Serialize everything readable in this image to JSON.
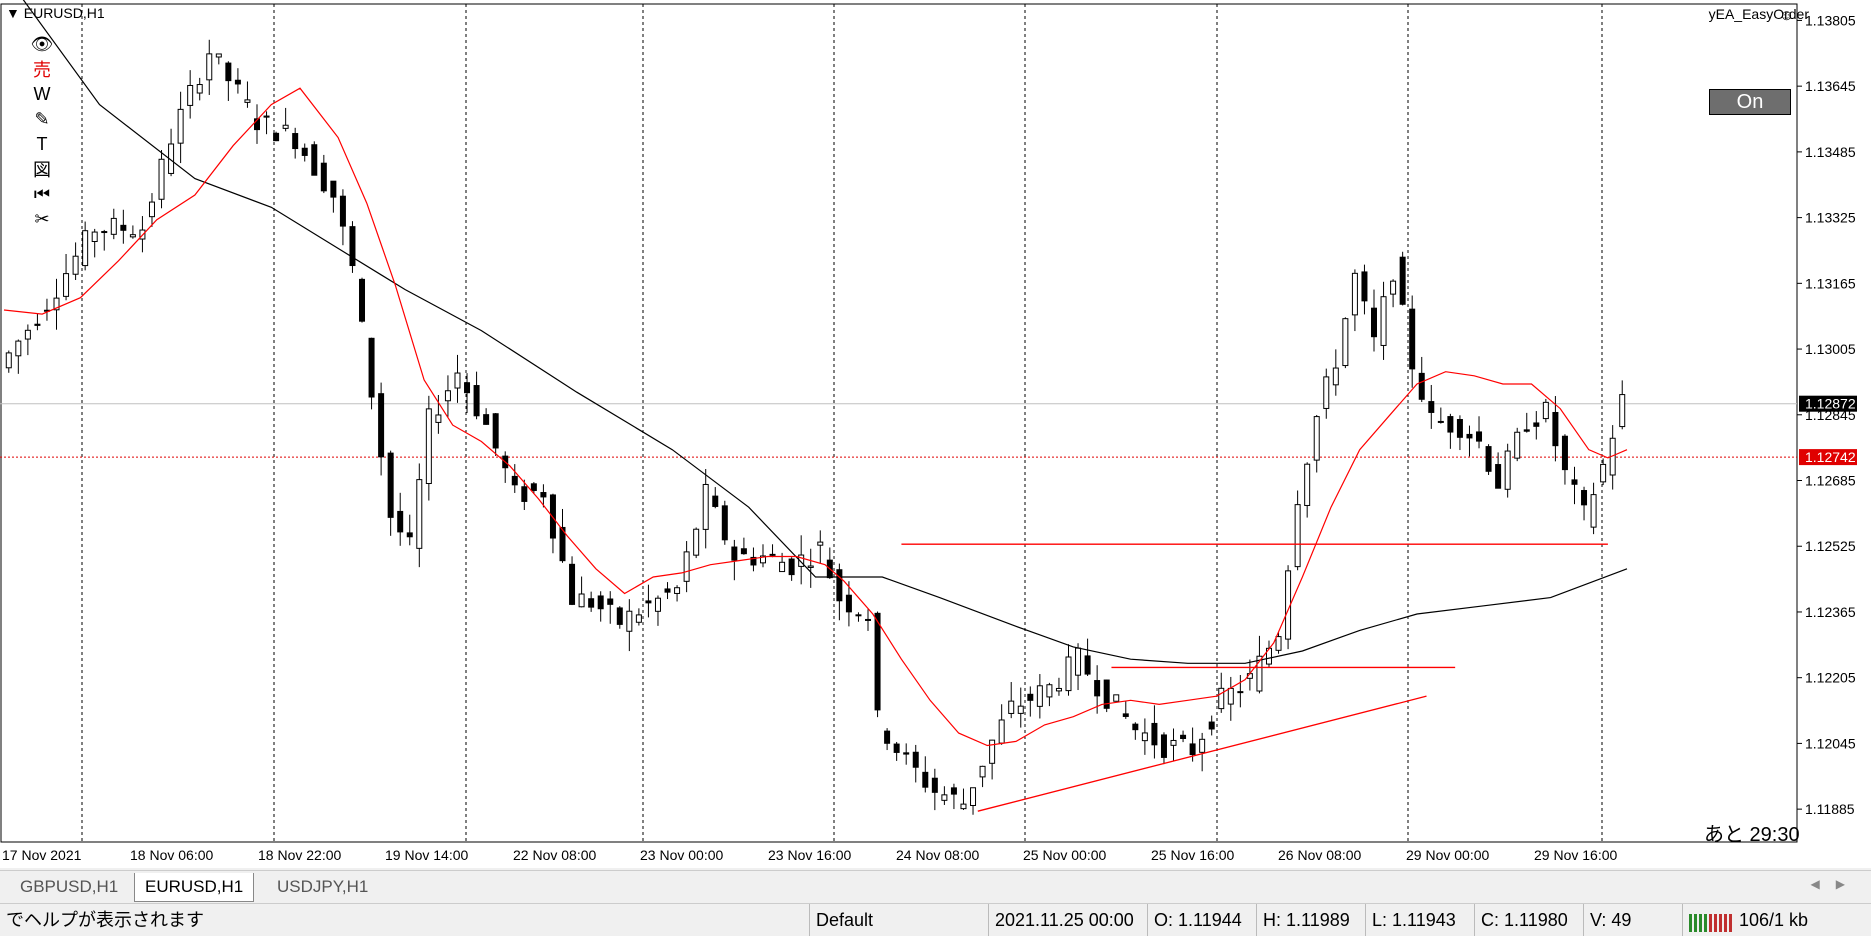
{
  "window": {
    "chart_title": "EURUSD,H1",
    "ea_name": "yEA_EasyOrder",
    "ea_button": "On",
    "countdown": "あと 29:30"
  },
  "toolbar": {
    "tools": [
      {
        "name": "eye-icon",
        "glyph": "👁",
        "color": "#000000"
      },
      {
        "name": "sell-icon",
        "glyph": "売",
        "color": "#e00000"
      },
      {
        "name": "w-icon",
        "glyph": "W",
        "color": "#000000"
      },
      {
        "name": "pen-icon",
        "glyph": "✎",
        "color": "#000000"
      },
      {
        "name": "text-icon",
        "glyph": "T",
        "color": "#000000"
      },
      {
        "name": "figure-icon",
        "glyph": "図",
        "color": "#000000"
      },
      {
        "name": "rewind-icon",
        "glyph": "⏮",
        "color": "#000000"
      },
      {
        "name": "scissors-icon",
        "glyph": "✂",
        "color": "#000000"
      }
    ]
  },
  "tabs": [
    {
      "label": "GBPUSD,H1",
      "active": false
    },
    {
      "label": "EURUSD,H1",
      "active": true
    },
    {
      "label": "USDJPY,H1",
      "active": false
    }
  ],
  "status": {
    "help": "でヘルプが表示されます",
    "profile": "Default",
    "datetime": "2021.11.25 00:00",
    "open": "O: 1.11944",
    "high": "H: 1.11989",
    "low": "L: 1.11943",
    "close": "C: 1.11980",
    "volume": "V: 49",
    "traffic": "106/1 kb"
  },
  "colors": {
    "bid_line": "#c0c0c0",
    "ask_line": "#e00000",
    "ma_fast": "#ff0000",
    "ma_slow": "#000000",
    "trendline": "#ff0000",
    "price_tag_current_bg": "#000000",
    "price_tag_ask_bg": "#e00000"
  },
  "chart_data": {
    "type": "line",
    "subtype": "candlestick",
    "symbol": "EURUSD",
    "timeframe": "H1",
    "y_ticks": [
      "1.13805",
      "1.13645",
      "1.13485",
      "1.13325",
      "1.13165",
      "1.13005",
      "1.12845",
      "1.12685",
      "1.12525",
      "1.12365",
      "1.12205",
      "1.12045",
      "1.11885"
    ],
    "ylim": [
      1.11805,
      1.13845
    ],
    "x_ticks": [
      "17 Nov 2021",
      "18 Nov 06:00",
      "18 Nov 22:00",
      "19 Nov 14:00",
      "22 Nov 08:00",
      "23 Nov 00:00",
      "23 Nov 16:00",
      "24 Nov 08:00",
      "25 Nov 00:00",
      "25 Nov 16:00",
      "26 Nov 08:00",
      "29 Nov 00:00",
      "29 Nov 16:00"
    ],
    "current_price": "1.12872",
    "ask_price": "1.12742",
    "close_path": [
      [
        0,
        1.1296
      ],
      [
        5,
        1.1312
      ],
      [
        10,
        1.133
      ],
      [
        15,
        1.133
      ],
      [
        18,
        1.1352
      ],
      [
        22,
        1.1373
      ],
      [
        27,
        1.1356
      ],
      [
        31,
        1.1352
      ],
      [
        35,
        1.1338
      ],
      [
        37,
        1.132
      ],
      [
        39,
        1.129
      ],
      [
        41,
        1.126
      ],
      [
        43,
        1.1252
      ],
      [
        45,
        1.1283
      ],
      [
        48,
        1.1295
      ],
      [
        51,
        1.1282
      ],
      [
        54,
        1.1265
      ],
      [
        57,
        1.1266
      ],
      [
        60,
        1.124
      ],
      [
        62,
        1.1239
      ],
      [
        65,
        1.1234
      ],
      [
        68,
        1.1238
      ],
      [
        71,
        1.1242
      ],
      [
        74,
        1.1265
      ],
      [
        77,
        1.125
      ],
      [
        80,
        1.125
      ],
      [
        83,
        1.1248
      ],
      [
        86,
        1.1252
      ],
      [
        88,
        1.124
      ],
      [
        91,
        1.1236
      ],
      [
        92,
        1.121
      ],
      [
        95,
        1.12
      ],
      [
        98,
        1.1193
      ],
      [
        101,
        1.119
      ],
      [
        104,
        1.1205
      ],
      [
        106,
        1.1213
      ],
      [
        110,
        1.1218
      ],
      [
        113,
        1.1225
      ],
      [
        116,
        1.1216
      ],
      [
        119,
        1.1208
      ],
      [
        122,
        1.1204
      ],
      [
        125,
        1.1203
      ],
      [
        128,
        1.1215
      ],
      [
        131,
        1.122
      ],
      [
        134,
        1.1232
      ],
      [
        136,
        1.1265
      ],
      [
        138,
        1.1284
      ],
      [
        140,
        1.1298
      ],
      [
        142,
        1.1318
      ],
      [
        144,
        1.1302
      ],
      [
        146,
        1.132
      ],
      [
        148,
        1.1297
      ],
      [
        150,
        1.1283
      ],
      [
        153,
        1.1282
      ],
      [
        155,
        1.1278
      ],
      [
        157,
        1.1268
      ],
      [
        160,
        1.1283
      ],
      [
        162,
        1.1285
      ],
      [
        164,
        1.127
      ],
      [
        166,
        1.126
      ],
      [
        168,
        1.1272
      ],
      [
        170,
        1.1288
      ]
    ],
    "ma_fast_path": [
      [
        0,
        1.131
      ],
      [
        4,
        1.1309
      ],
      [
        8,
        1.1313
      ],
      [
        12,
        1.1322
      ],
      [
        16,
        1.1332
      ],
      [
        20,
        1.1338
      ],
      [
        24,
        1.135
      ],
      [
        28,
        1.136
      ],
      [
        31,
        1.1364
      ],
      [
        35,
        1.1352
      ],
      [
        38,
        1.1336
      ],
      [
        41,
        1.1316
      ],
      [
        44,
        1.1293
      ],
      [
        47,
        1.1282
      ],
      [
        50,
        1.1278
      ],
      [
        53,
        1.1272
      ],
      [
        56,
        1.1264
      ],
      [
        59,
        1.1255
      ],
      [
        62,
        1.1247
      ],
      [
        65,
        1.1241
      ],
      [
        68,
        1.1245
      ],
      [
        71,
        1.1246
      ],
      [
        74,
        1.1248
      ],
      [
        77,
        1.1249
      ],
      [
        80,
        1.125
      ],
      [
        83,
        1.125
      ],
      [
        86,
        1.1248
      ],
      [
        88,
        1.1244
      ],
      [
        91,
        1.1236
      ],
      [
        94,
        1.1225
      ],
      [
        97,
        1.1215
      ],
      [
        100,
        1.1207
      ],
      [
        103,
        1.1204
      ],
      [
        106,
        1.1205
      ],
      [
        109,
        1.1209
      ],
      [
        112,
        1.1211
      ],
      [
        115,
        1.1214
      ],
      [
        118,
        1.1215
      ],
      [
        121,
        1.1214
      ],
      [
        124,
        1.1215
      ],
      [
        127,
        1.1216
      ],
      [
        130,
        1.122
      ],
      [
        133,
        1.1229
      ],
      [
        136,
        1.1245
      ],
      [
        139,
        1.1262
      ],
      [
        142,
        1.1276
      ],
      [
        145,
        1.1284
      ],
      [
        148,
        1.1292
      ],
      [
        151,
        1.1295
      ],
      [
        154,
        1.1294
      ],
      [
        157,
        1.1292
      ],
      [
        160,
        1.1292
      ],
      [
        163,
        1.1286
      ],
      [
        166,
        1.1276
      ],
      [
        168,
        1.1274
      ],
      [
        170,
        1.1276
      ]
    ],
    "ma_slow_path": [
      [
        0,
        1.1392
      ],
      [
        10,
        1.136
      ],
      [
        20,
        1.1342
      ],
      [
        28,
        1.1335
      ],
      [
        35,
        1.1325
      ],
      [
        42,
        1.1315
      ],
      [
        50,
        1.1305
      ],
      [
        60,
        1.129
      ],
      [
        70,
        1.1276
      ],
      [
        78,
        1.1262
      ],
      [
        85,
        1.1245
      ],
      [
        92,
        1.1245
      ],
      [
        98,
        1.124
      ],
      [
        106,
        1.1233
      ],
      [
        112,
        1.1228
      ],
      [
        118,
        1.1225
      ],
      [
        124,
        1.1224
      ],
      [
        130,
        1.1224
      ],
      [
        136,
        1.1227
      ],
      [
        142,
        1.1232
      ],
      [
        148,
        1.1236
      ],
      [
        155,
        1.1238
      ],
      [
        162,
        1.124
      ],
      [
        170,
        1.1247
      ]
    ],
    "trendlines": [
      {
        "x1": 94,
        "y1": 1.1253,
        "x2": 168,
        "y2": 1.1253
      },
      {
        "x1": 116,
        "y1": 1.1223,
        "x2": 152,
        "y2": 1.1223
      },
      {
        "x1": 102,
        "y1": 1.1188,
        "x2": 149,
        "y2": 1.1216
      }
    ],
    "grid": true
  }
}
